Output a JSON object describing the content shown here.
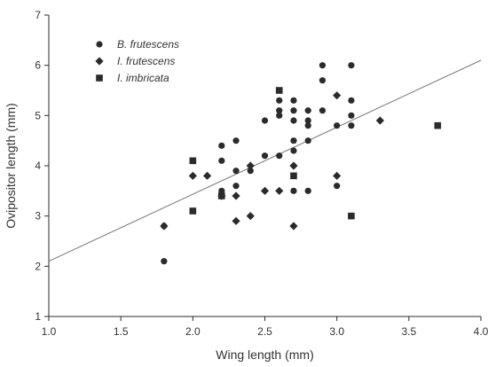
{
  "chart_data": {
    "type": "scatter",
    "xlabel": "Wing length (mm)",
    "ylabel": "Ovipositor length (mm)",
    "xlim": [
      1.0,
      4.0
    ],
    "ylim": [
      1,
      7
    ],
    "x_ticks": [
      "1.0",
      "1.5",
      "2.0",
      "2.5",
      "3.0",
      "3.5",
      "4.0"
    ],
    "y_ticks": [
      "1",
      "2",
      "3",
      "4",
      "5",
      "6",
      "7"
    ],
    "grid": false,
    "legend_position": "top-left",
    "marker_color": "#2b2b2b",
    "line_color": "#777777",
    "series": [
      {
        "name": "B. frutescens",
        "marker": "circle",
        "points": [
          [
            1.8,
            2.1
          ],
          [
            1.8,
            2.8
          ],
          [
            2.2,
            4.1
          ],
          [
            2.2,
            4.4
          ],
          [
            2.3,
            4.5
          ],
          [
            2.3,
            3.9
          ],
          [
            2.3,
            3.6
          ],
          [
            2.2,
            3.5
          ],
          [
            2.4,
            3.9
          ],
          [
            2.5,
            4.2
          ],
          [
            2.5,
            4.9
          ],
          [
            2.6,
            5.0
          ],
          [
            2.6,
            5.1
          ],
          [
            2.6,
            5.3
          ],
          [
            2.6,
            4.2
          ],
          [
            2.7,
            4.5
          ],
          [
            2.7,
            4.3
          ],
          [
            2.7,
            4.9
          ],
          [
            2.7,
            5.1
          ],
          [
            2.7,
            5.3
          ],
          [
            2.7,
            3.5
          ],
          [
            2.8,
            4.9
          ],
          [
            2.8,
            5.1
          ],
          [
            2.8,
            4.8
          ],
          [
            2.8,
            3.5
          ],
          [
            2.8,
            4.5
          ],
          [
            2.9,
            6.0
          ],
          [
            2.9,
            5.7
          ],
          [
            2.9,
            5.1
          ],
          [
            3.0,
            4.8
          ],
          [
            3.0,
            3.6
          ],
          [
            3.1,
            6.0
          ],
          [
            3.1,
            5.3
          ],
          [
            3.1,
            5.0
          ],
          [
            3.1,
            4.8
          ]
        ]
      },
      {
        "name": "I. frutescens",
        "marker": "diamond",
        "points": [
          [
            1.8,
            2.8
          ],
          [
            2.0,
            3.8
          ],
          [
            2.1,
            3.8
          ],
          [
            2.2,
            3.4
          ],
          [
            2.3,
            3.4
          ],
          [
            2.3,
            2.9
          ],
          [
            2.4,
            3.0
          ],
          [
            2.4,
            4.0
          ],
          [
            2.5,
            3.5
          ],
          [
            2.6,
            3.5
          ],
          [
            2.7,
            4.0
          ],
          [
            2.7,
            2.8
          ],
          [
            3.0,
            3.8
          ],
          [
            3.0,
            5.4
          ],
          [
            3.3,
            4.9
          ]
        ]
      },
      {
        "name": "I. imbricata",
        "marker": "square",
        "points": [
          [
            2.0,
            4.1
          ],
          [
            2.0,
            3.1
          ],
          [
            2.2,
            3.4
          ],
          [
            2.6,
            5.5
          ],
          [
            2.7,
            3.8
          ],
          [
            3.1,
            3.0
          ],
          [
            3.7,
            4.8
          ]
        ]
      }
    ],
    "regression_line": {
      "x": [
        1.0,
        4.0
      ],
      "y": [
        2.1,
        6.1
      ]
    }
  }
}
